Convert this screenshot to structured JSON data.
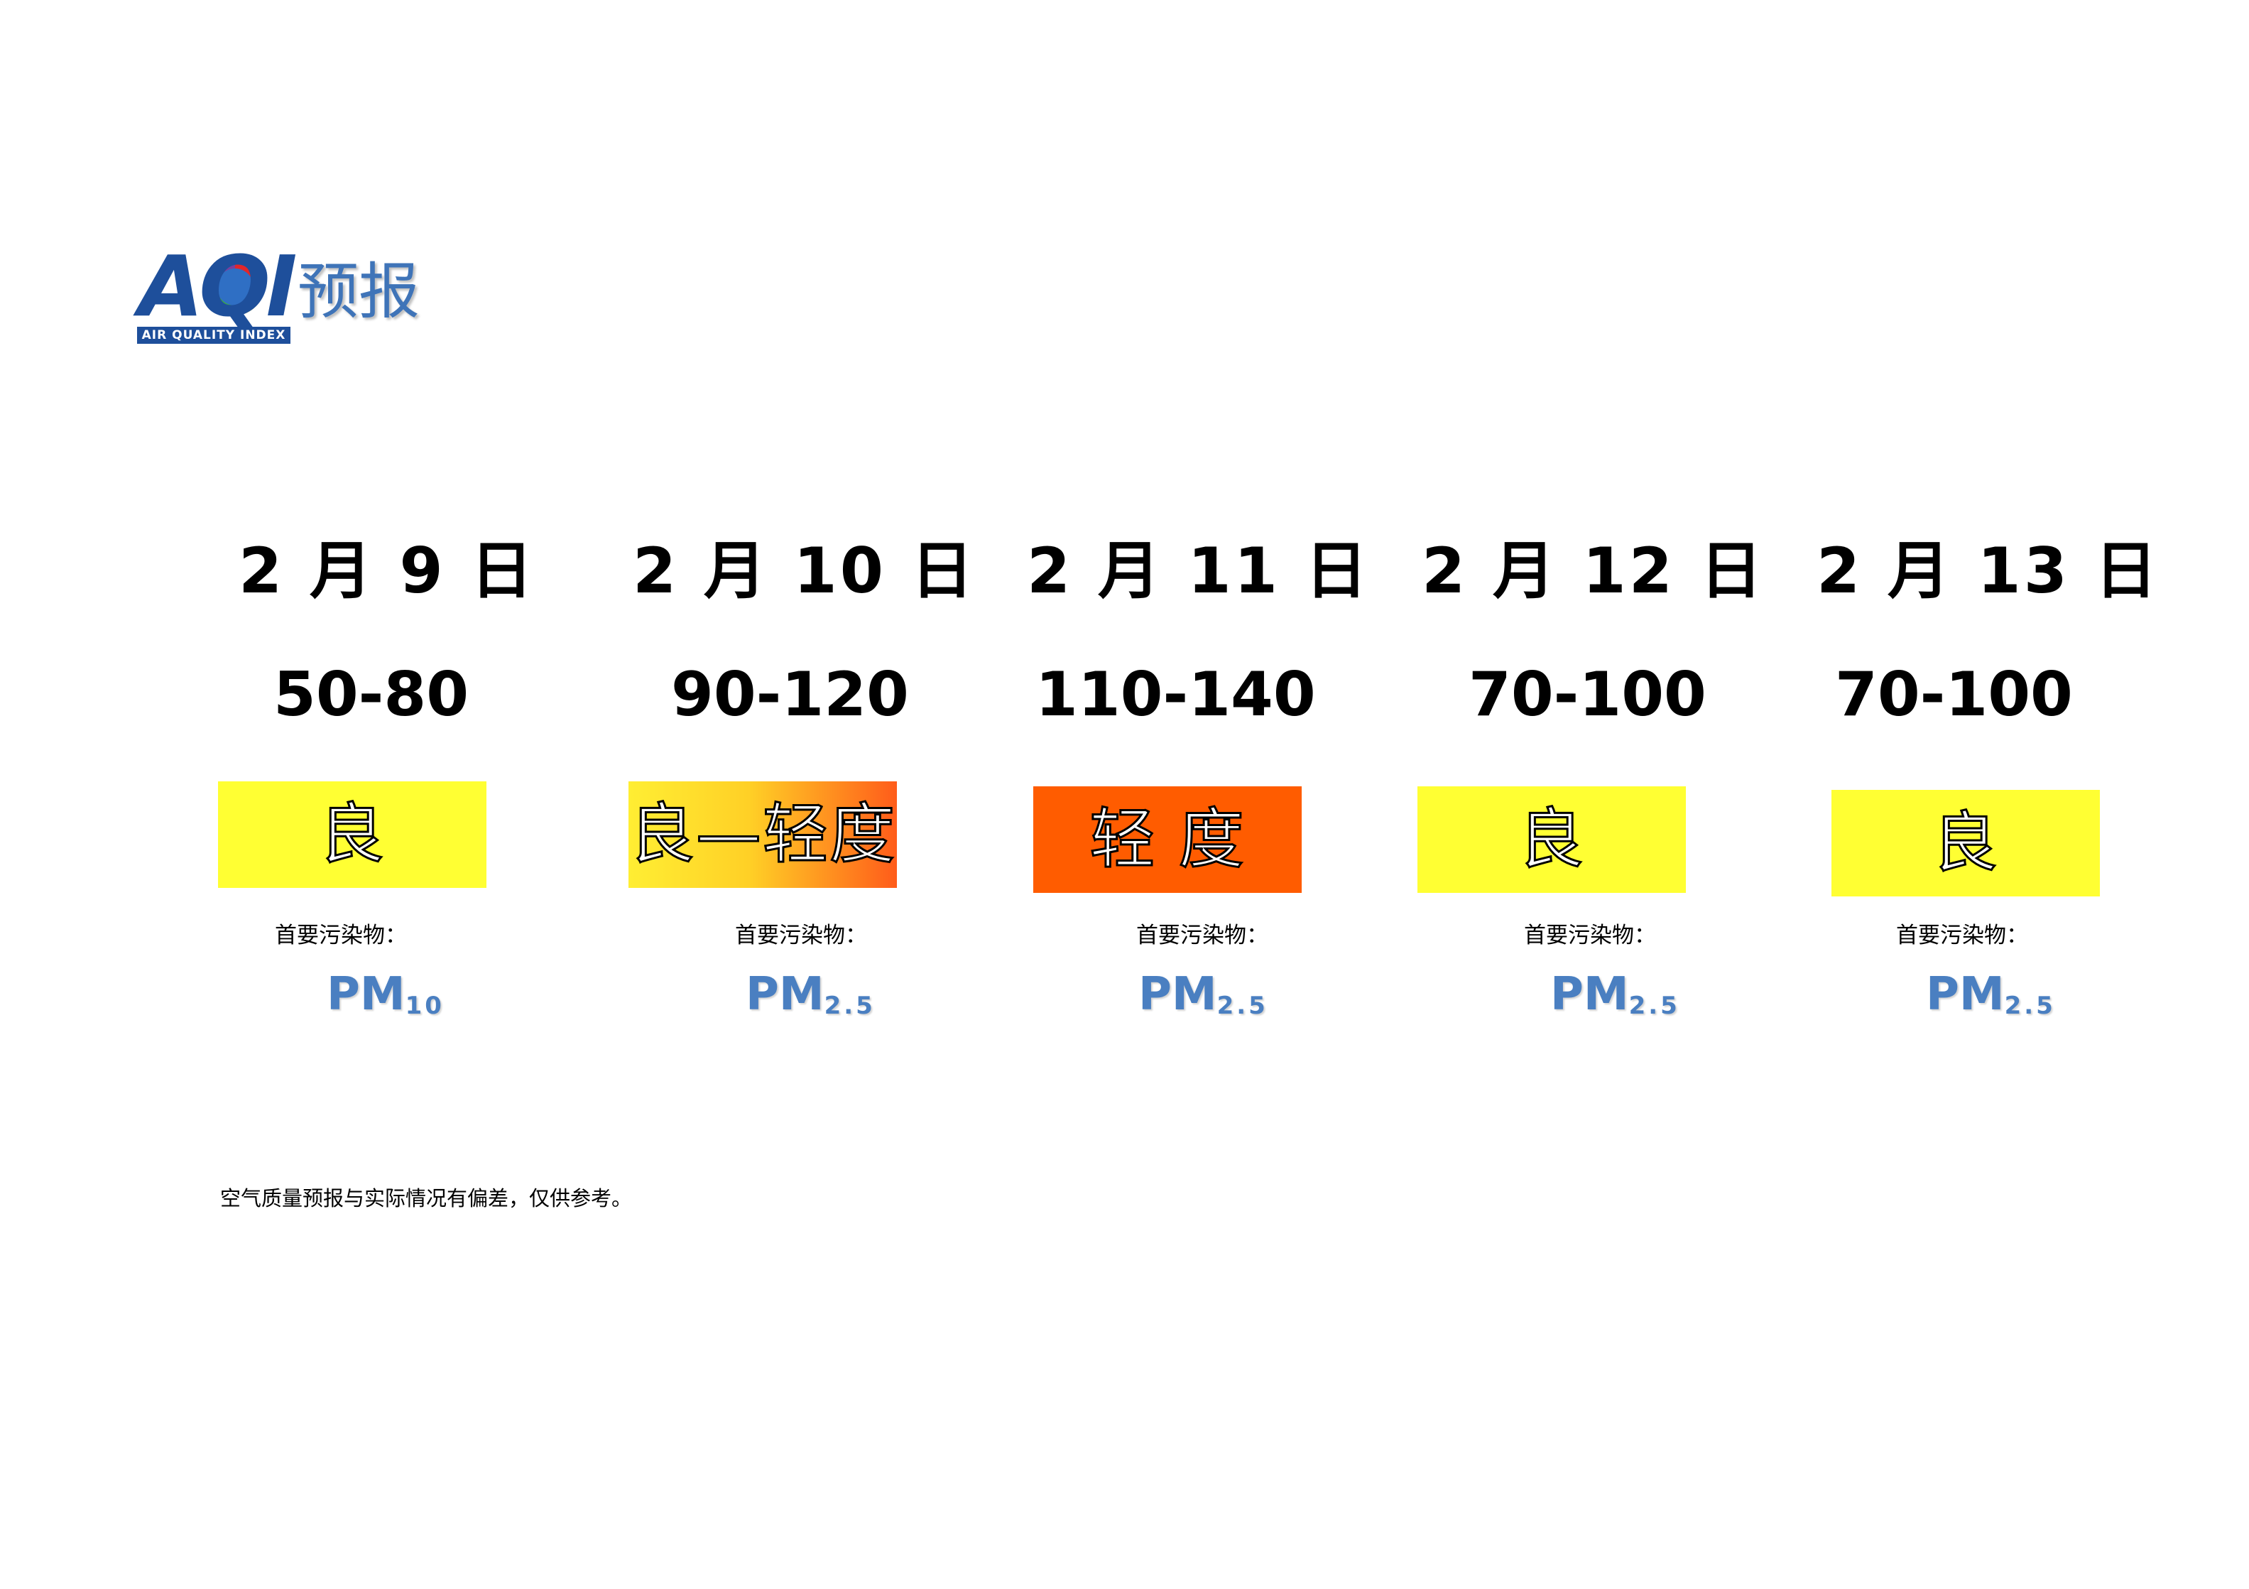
{
  "logo": {
    "letters": "AQI",
    "tagline": "AIR QUALITY INDEX",
    "word": "预报"
  },
  "colors": {
    "good": "#ffff33",
    "light": "#ff5c00",
    "good_to_light": [
      "#ffee33",
      "#ff5c1a"
    ],
    "pollutant": "#4a7fc1",
    "logo_blue": "#1e4f9b"
  },
  "days": [
    {
      "date": "2 月 9 日",
      "range": "50-80",
      "level": "良",
      "pollutant_label": "首要污染物：",
      "pollutant_main": "PM",
      "pollutant_sub": "10"
    },
    {
      "date": "2 月 10 日",
      "range": "90-120",
      "level": "良—轻度",
      "pollutant_label": "首要污染物：",
      "pollutant_main": "PM",
      "pollutant_sub": "2.5"
    },
    {
      "date": "2 月 11 日",
      "range": "110-140",
      "level": "轻 度",
      "pollutant_label": "首要污染物：",
      "pollutant_main": "PM",
      "pollutant_sub": "2.5"
    },
    {
      "date": "2 月 12 日",
      "range": "70-100",
      "level": "良",
      "pollutant_label": "首要污染物：",
      "pollutant_main": "PM",
      "pollutant_sub": "2.5"
    },
    {
      "date": "2 月 13 日",
      "range": "70-100",
      "level": "良",
      "pollutant_label": "首要污染物：",
      "pollutant_main": "PM",
      "pollutant_sub": "2.5"
    }
  ],
  "footnote": "空气质量预报与实际情况有偏差，仅供参考。"
}
